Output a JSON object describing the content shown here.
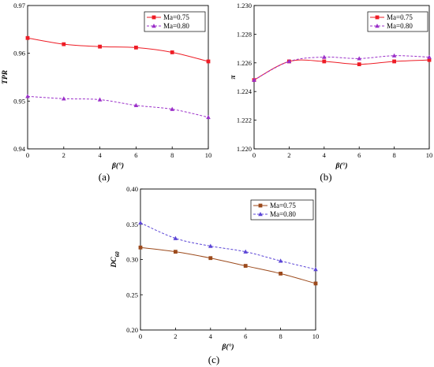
{
  "chart_data": [
    {
      "type": "line",
      "panel_label": "(a)",
      "xlabel": "β(°)",
      "ylabel": "TPR",
      "xlim": [
        0,
        10
      ],
      "ylim": [
        0.94,
        0.97
      ],
      "xticks": [
        "0",
        "2",
        "4",
        "6",
        "8",
        "10"
      ],
      "yticks": [
        "0.94",
        "0.95",
        "0.96",
        "0.97"
      ],
      "x": [
        0,
        2,
        4,
        6,
        8,
        10
      ],
      "legend_position": "top-right",
      "grid": false,
      "series": [
        {
          "name": "Ma=0.75",
          "values": [
            0.9632,
            0.9619,
            0.9614,
            0.9612,
            0.9602,
            0.9583
          ],
          "color": "#ee1c25",
          "marker": "square",
          "dash": "solid"
        },
        {
          "name": "Ma=0.80",
          "values": [
            0.951,
            0.9505,
            0.9503,
            0.9491,
            0.9483,
            0.9466
          ],
          "color": "#9b30c9",
          "marker": "triangle",
          "dash": "dashed"
        }
      ]
    },
    {
      "type": "line",
      "panel_label": "(b)",
      "xlabel": "β(°)",
      "ylabel": "π",
      "xlim": [
        0,
        10
      ],
      "ylim": [
        1.22,
        1.23
      ],
      "xticks": [
        "0",
        "2",
        "4",
        "6",
        "8",
        "10"
      ],
      "yticks": [
        "1.220",
        "1.222",
        "1.224",
        "1.226",
        "1.228",
        "1.230"
      ],
      "x": [
        0,
        2,
        4,
        6,
        8,
        10
      ],
      "legend_position": "top-right",
      "grid": false,
      "series": [
        {
          "name": "Ma=0.75",
          "values": [
            1.2248,
            1.2261,
            1.2261,
            1.2259,
            1.2261,
            1.2262
          ],
          "color": "#ee1c25",
          "marker": "square",
          "dash": "solid"
        },
        {
          "name": "Ma=0.80",
          "values": [
            1.2248,
            1.2261,
            1.2264,
            1.2263,
            1.2265,
            1.2264
          ],
          "color": "#9b30c9",
          "marker": "triangle",
          "dash": "dashed"
        }
      ]
    },
    {
      "type": "line",
      "panel_label": "(c)",
      "xlabel": "β(°)",
      "ylabel": "DC",
      "ylabel_sub": "60",
      "xlim": [
        0,
        10
      ],
      "ylim": [
        0.2,
        0.4
      ],
      "xticks": [
        "0",
        "2",
        "4",
        "6",
        "8",
        "10"
      ],
      "yticks": [
        "0.20",
        "0.25",
        "0.30",
        "0.35",
        "0.40"
      ],
      "x": [
        0,
        2,
        4,
        6,
        8,
        10
      ],
      "legend_position": "top-right",
      "grid": false,
      "series": [
        {
          "name": "Ma=0.75",
          "values": [
            0.317,
            0.311,
            0.302,
            0.291,
            0.28,
            0.266
          ],
          "color": "#9c4a1c",
          "marker": "square",
          "dash": "solid"
        },
        {
          "name": "Ma=0.80",
          "values": [
            0.352,
            0.33,
            0.319,
            0.311,
            0.298,
            0.286
          ],
          "color": "#5b45d6",
          "marker": "triangle",
          "dash": "dashed"
        }
      ]
    }
  ]
}
